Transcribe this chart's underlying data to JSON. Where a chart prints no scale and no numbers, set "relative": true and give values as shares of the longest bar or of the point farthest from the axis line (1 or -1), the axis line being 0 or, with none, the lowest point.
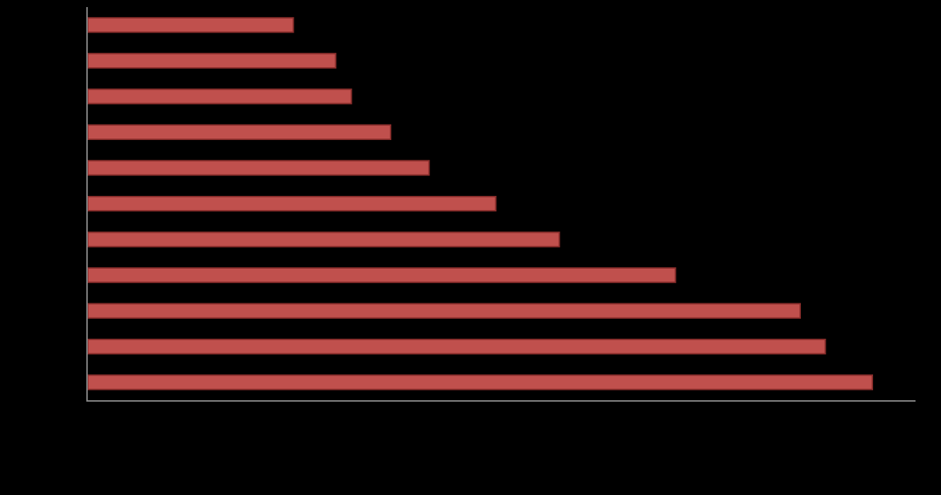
{
  "chart_data": {
    "type": "bar",
    "orientation": "horizontal",
    "relative": true,
    "categories": [
      null,
      null,
      null,
      null,
      null,
      null,
      null,
      null,
      null,
      null,
      null
    ],
    "values": [
      0.262,
      0.316,
      0.336,
      0.386,
      0.435,
      0.52,
      0.601,
      0.749,
      0.908,
      0.94,
      1
    ],
    "color": "#c0504d",
    "grid": false
  }
}
